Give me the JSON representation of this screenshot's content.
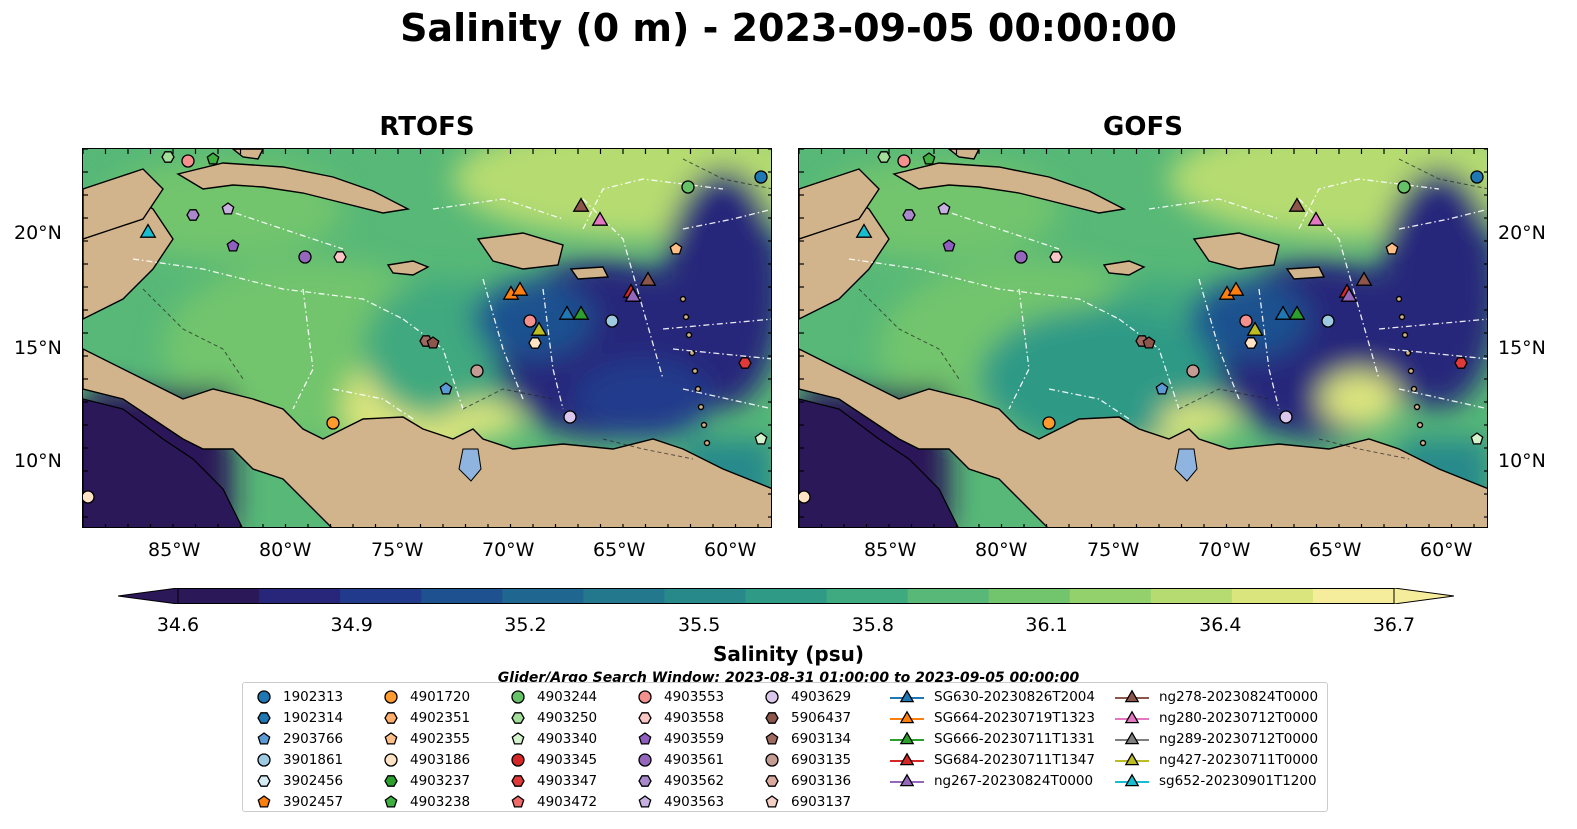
{
  "title": "Salinity (0 m) - 2023-09-05 00:00:00",
  "panels": [
    {
      "title": "RTOFS"
    },
    {
      "title": "GOFS"
    }
  ],
  "lon_ticks": [
    "85°W",
    "80°W",
    "75°W",
    "70°W",
    "65°W",
    "60°W"
  ],
  "lat_ticks": [
    "20°N",
    "15°N",
    "10°N"
  ],
  "colorbar": {
    "label": "Salinity (psu)",
    "ticks": [
      "34.6",
      "34.9",
      "35.2",
      "35.5",
      "35.8",
      "36.1",
      "36.4",
      "36.7"
    ],
    "colors": [
      "#2a1858",
      "#27267a",
      "#223a8c",
      "#1d5190",
      "#1f6690",
      "#23788e",
      "#28898b",
      "#2f9a86",
      "#3fa97f",
      "#57b877",
      "#72c56d",
      "#92d16c",
      "#b6dc71",
      "#dbe57d",
      "#f5ec9c"
    ]
  },
  "search_window": "Glider/Argo Search Window: 2023-08-31 01:00:00 to 2023-09-05 00:00:00",
  "legend": {
    "col1": [
      {
        "label": "1902313",
        "marker": "circle",
        "color": "#1f77b4"
      },
      {
        "label": "1902314",
        "marker": "hexagon",
        "color": "#1f77b4"
      },
      {
        "label": "2903766",
        "marker": "pentagon",
        "color": "#5b9bd5"
      },
      {
        "label": "3901861",
        "marker": "circle",
        "color": "#9ecae1"
      },
      {
        "label": "3902456",
        "marker": "hexagon",
        "color": "#d6ecf5"
      },
      {
        "label": "3902457",
        "marker": "pentagon",
        "color": "#ff7f0e"
      }
    ],
    "col2": [
      {
        "label": "4901720",
        "marker": "circle",
        "color": "#ff9a2e"
      },
      {
        "label": "4902351",
        "marker": "hexagon",
        "color": "#ffae6b"
      },
      {
        "label": "4902355",
        "marker": "pentagon",
        "color": "#ffbf86"
      },
      {
        "label": "4903186",
        "marker": "circle",
        "color": "#ffe3c4"
      },
      {
        "label": "4903237",
        "marker": "hexagon",
        "color": "#2ca02c"
      },
      {
        "label": "4903238",
        "marker": "pentagon",
        "color": "#3fb03f"
      }
    ],
    "col3": [
      {
        "label": "4903244",
        "marker": "circle",
        "color": "#66c266"
      },
      {
        "label": "4903250",
        "marker": "hexagon",
        "color": "#a2dd9a"
      },
      {
        "label": "4903340",
        "marker": "pentagon",
        "color": "#d4f2cc"
      },
      {
        "label": "4903345",
        "marker": "circle",
        "color": "#d62728"
      },
      {
        "label": "4903347",
        "marker": "hexagon",
        "color": "#e0393a"
      },
      {
        "label": "4903472",
        "marker": "pentagon",
        "color": "#f06a6a"
      }
    ],
    "col4": [
      {
        "label": "4903553",
        "marker": "circle",
        "color": "#f4908e"
      },
      {
        "label": "4903558",
        "marker": "hexagon",
        "color": "#fbc7c5"
      },
      {
        "label": "4903559",
        "marker": "pentagon",
        "color": "#8f5fc0"
      },
      {
        "label": "4903561",
        "marker": "circle",
        "color": "#9467bd"
      },
      {
        "label": "4903562",
        "marker": "hexagon",
        "color": "#a988cc"
      },
      {
        "label": "4903563",
        "marker": "pentagon",
        "color": "#c5b0e0"
      }
    ],
    "col5": [
      {
        "label": "4903629",
        "marker": "circle",
        "color": "#dcc7ec"
      },
      {
        "label": "5906437",
        "marker": "hexagon",
        "color": "#8c564b"
      },
      {
        "label": "6903134",
        "marker": "pentagon",
        "color": "#9e6a5f"
      },
      {
        "label": "6903135",
        "marker": "circle",
        "color": "#c49c94"
      },
      {
        "label": "6903136",
        "marker": "hexagon",
        "color": "#d9aa9d"
      },
      {
        "label": "6903137",
        "marker": "pentagon",
        "color": "#f4cfc6"
      }
    ],
    "col6": [
      {
        "label": "SG630-20230826T2004",
        "marker": "triangle",
        "color": "#1f77b4"
      },
      {
        "label": "SG664-20230719T1323",
        "marker": "triangle",
        "color": "#ff7f0e"
      },
      {
        "label": "SG666-20230711T1331",
        "marker": "triangle",
        "color": "#2ca02c"
      },
      {
        "label": "SG684-20230711T1347",
        "marker": "triangle",
        "color": "#d62728"
      },
      {
        "label": "ng267-20230824T0000",
        "marker": "triangle",
        "color": "#9467bd"
      }
    ],
    "col7": [
      {
        "label": "ng278-20230824T0000",
        "marker": "triangle",
        "color": "#8c564b"
      },
      {
        "label": "ng280-20230712T0000",
        "marker": "triangle",
        "color": "#e377c2"
      },
      {
        "label": "ng289-20230712T0000",
        "marker": "triangle",
        "color": "#7f7f7f"
      },
      {
        "label": "ng427-20230711T0000",
        "marker": "triangle",
        "color": "#bcbd22"
      },
      {
        "label": "sg652-20230901T1200",
        "marker": "triangle",
        "color": "#17becf"
      }
    ]
  }
}
